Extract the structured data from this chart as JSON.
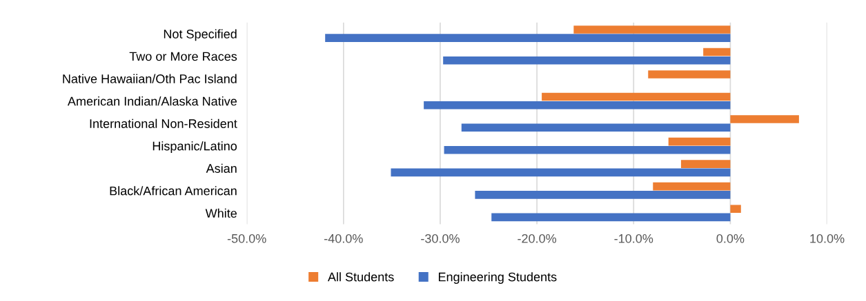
{
  "chart_data": {
    "type": "bar",
    "orientation": "horizontal",
    "categories": [
      "Not Specified",
      "Two or More Races",
      "Native Hawaiian/Oth Pac Island",
      "American Indian/Alaska Native",
      "International Non-Resident",
      "Hispanic/Latino",
      "Asian",
      "Black/African American",
      "White"
    ],
    "series": [
      {
        "name": "All Students",
        "color": "#ed7d31",
        "values": [
          -16.2,
          -2.8,
          -8.5,
          -19.5,
          7.1,
          -6.4,
          -5.1,
          -8.0,
          1.1
        ]
      },
      {
        "name": "Engineering Students",
        "color": "#4472c4",
        "values": [
          -41.9,
          -29.7,
          null,
          -31.7,
          -27.8,
          -29.6,
          -35.1,
          -26.4,
          -24.7
        ]
      }
    ],
    "xlim": [
      -50,
      10
    ],
    "xticks": [
      {
        "value": -50,
        "label": "-50.0%"
      },
      {
        "value": -40,
        "label": "-40.0%"
      },
      {
        "value": -30,
        "label": "-30.0%"
      },
      {
        "value": -20,
        "label": "-20.0%"
      },
      {
        "value": -10,
        "label": "-10.0%"
      },
      {
        "value": 0,
        "label": "0.0%"
      },
      {
        "value": 10,
        "label": "10.0%"
      }
    ],
    "grid": "x",
    "legend": "bottom"
  }
}
